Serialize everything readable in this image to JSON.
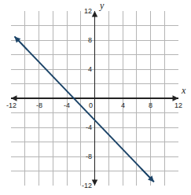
{
  "chart_data": {
    "type": "line",
    "x_label": "x",
    "y_label": "y",
    "x": [
      -11.5,
      8.5
    ],
    "values": [
      8.5,
      -11.5
    ],
    "color": "#1c4468",
    "marker": "arrow",
    "xlim": [
      -12,
      12
    ],
    "ylim": [
      -12,
      12
    ],
    "xticks": [
      -12,
      -8,
      -4,
      0,
      4,
      8,
      12
    ],
    "yticks": [
      -12,
      -8,
      -4,
      0,
      4,
      8,
      12
    ],
    "grid": true
  }
}
